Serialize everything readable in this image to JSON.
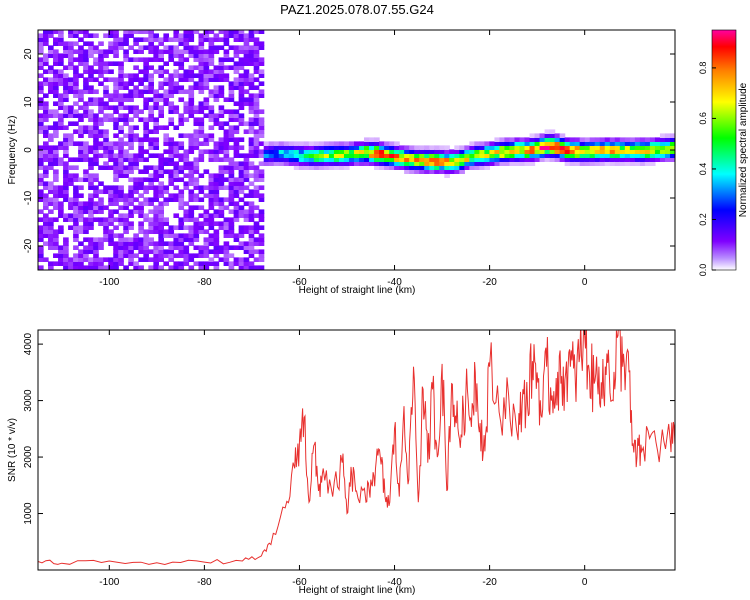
{
  "title": "PAZ1.2025.078.07.55.G24",
  "chart_data": [
    {
      "type": "heatmap",
      "title": "PAZ1.2025.078.07.55.G24",
      "xlabel": "Height of straight line (km)",
      "ylabel": "Frequency (Hz)",
      "xlim": [
        -115,
        19
      ],
      "ylim": [
        -25,
        25
      ],
      "xticks": [
        -100,
        -80,
        -60,
        -40,
        -20,
        0
      ],
      "yticks": [
        -20,
        -10,
        0,
        10,
        20
      ],
      "colorbar": {
        "label": "Normalized spectral amplitude",
        "range": [
          0,
          0.95
        ],
        "ticks": [
          0.0,
          0.2,
          0.4,
          0.6,
          0.8
        ],
        "colormap": [
          "#ffffff",
          "#7f00ff",
          "#0000ff",
          "#00ffff",
          "#00ff00",
          "#ffff00",
          "#ff8000",
          "#ff0000",
          "#ff00a0"
        ]
      },
      "noise_region_x": [
        -115,
        -68
      ],
      "noise_amplitude": 0.12,
      "signal_ridge": {
        "x": [
          -68,
          -65,
          -62,
          -58,
          -55,
          -50,
          -46,
          -44,
          -40,
          -36,
          -32,
          -28,
          -24,
          -20,
          -16,
          -12,
          -8,
          -4,
          0,
          4,
          8,
          12,
          16,
          19
        ],
        "frequency": [
          -1.5,
          -1.2,
          -1.5,
          -1.8,
          -1.6,
          -1.4,
          -1.0,
          -1.2,
          -2.0,
          -2.6,
          -2.8,
          -3.0,
          -1.8,
          -1.2,
          -0.6,
          -0.5,
          0.5,
          -0.5,
          -0.8,
          -0.5,
          -0.6,
          -0.6,
          -0.3,
          0.0
        ],
        "peak": [
          0.3,
          0.35,
          0.4,
          0.5,
          0.55,
          0.6,
          0.7,
          0.85,
          0.75,
          0.7,
          0.8,
          0.7,
          0.6,
          0.65,
          0.7,
          0.75,
          0.95,
          0.8,
          0.7,
          0.75,
          0.65,
          0.7,
          0.65,
          0.7
        ]
      }
    },
    {
      "type": "line",
      "xlabel": "Height of straight line (km)",
      "ylabel": "SNR (10 * v/v)",
      "xlim": [
        -115,
        19
      ],
      "ylim": [
        0,
        4250
      ],
      "xticks": [
        -100,
        -80,
        -60,
        -40,
        -20,
        0
      ],
      "yticks": [
        1000,
        2000,
        3000,
        4000
      ],
      "line_color": "#e8302e",
      "series": [
        {
          "x": [
            -115,
            -110,
            -100,
            -90,
            -80,
            -72,
            -68,
            -66,
            -63,
            -61,
            -60,
            -59,
            -58,
            -57,
            -56,
            -55,
            -53,
            -51,
            -50,
            -49,
            -48,
            -46,
            -45,
            -44,
            -43,
            -42,
            -41,
            -40,
            -39,
            -38,
            -37,
            -36,
            -35,
            -34,
            -33,
            -32,
            -31,
            -30,
            -29,
            -28,
            -27,
            -26,
            -25,
            -24,
            -23,
            -22,
            -21,
            -20,
            -18,
            -16,
            -14,
            -13,
            -12,
            -11,
            -10,
            -9,
            -8,
            -7,
            -6,
            -5,
            -4,
            -3,
            -2,
            -1,
            0,
            1,
            2,
            3,
            4,
            5,
            6,
            7,
            8,
            9,
            10,
            11,
            12,
            14,
            16,
            18,
            19
          ],
          "y": [
            150,
            120,
            160,
            130,
            140,
            160,
            250,
            450,
            1100,
            1800,
            2300,
            2700,
            1200,
            2200,
            1400,
            1800,
            1300,
            1900,
            1000,
            1700,
            1400,
            1200,
            1600,
            1800,
            2000,
            1300,
            1200,
            2500,
            1300,
            2900,
            1600,
            3600,
            1200,
            3200,
            1900,
            3200,
            2000,
            3650,
            1400,
            3300,
            2600,
            2400,
            3100,
            2700,
            3500,
            2600,
            2100,
            3600,
            2800,
            3100,
            2300,
            3200,
            2900,
            3700,
            3500,
            2700,
            3600,
            3000,
            3400,
            3300,
            3500,
            3600,
            3400,
            3800,
            4150,
            3500,
            3300,
            3600,
            3100,
            3900,
            3000,
            4150,
            3600,
            3900,
            2200,
            2000,
            2100,
            2400,
            2200,
            2300,
            2200
          ]
        }
      ]
    }
  ]
}
